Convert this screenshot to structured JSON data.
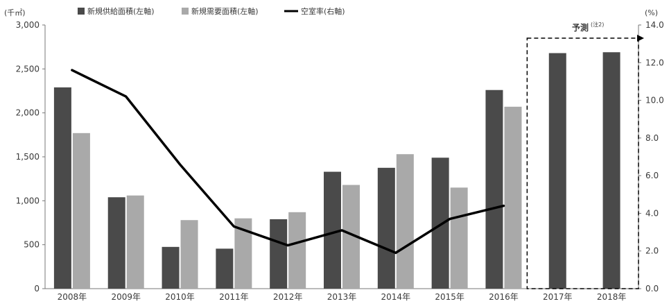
{
  "chart_data": {
    "type": "bar",
    "categories": [
      "2008年",
      "2009年",
      "2010年",
      "2011年",
      "2012年",
      "2013年",
      "2014年",
      "2015年",
      "2016年",
      "2017年",
      "2018年"
    ],
    "series": [
      {
        "name": "新規供給面積(左軸)",
        "kind": "bar",
        "axis": "left",
        "color": "#4a4a4a",
        "values": [
          2290,
          1040,
          475,
          455,
          790,
          1330,
          1375,
          1490,
          2260,
          2680,
          2690
        ]
      },
      {
        "name": "新規需要面積(左軸)",
        "kind": "bar",
        "axis": "left",
        "color": "#a9a9a9",
        "values": [
          1770,
          1060,
          780,
          800,
          870,
          1180,
          1530,
          1150,
          2070,
          null,
          null
        ]
      },
      {
        "name": "空室率(右軸)",
        "kind": "line",
        "axis": "right",
        "color": "#000000",
        "values": [
          11.6,
          10.2,
          6.6,
          3.3,
          2.3,
          3.1,
          1.9,
          3.7,
          4.4,
          null,
          null
        ]
      }
    ],
    "left_axis": {
      "unit": "(千㎡)",
      "ylim": [
        0,
        3000
      ],
      "ticks": [
        "0",
        "500",
        "1,000",
        "1,500",
        "2,000",
        "2,500",
        "3,000"
      ]
    },
    "right_axis": {
      "unit": "(%)",
      "ylim": [
        0,
        14
      ],
      "ticks": [
        "0.0",
        "2.0",
        "4.0",
        "6.0",
        "8.0",
        "10.0",
        "12.0",
        "14.0"
      ]
    },
    "annotation": {
      "label": "予測",
      "note": "(注2)",
      "range": [
        "2017年",
        "2018年"
      ]
    },
    "grid": false,
    "legend_position": "top-left"
  }
}
